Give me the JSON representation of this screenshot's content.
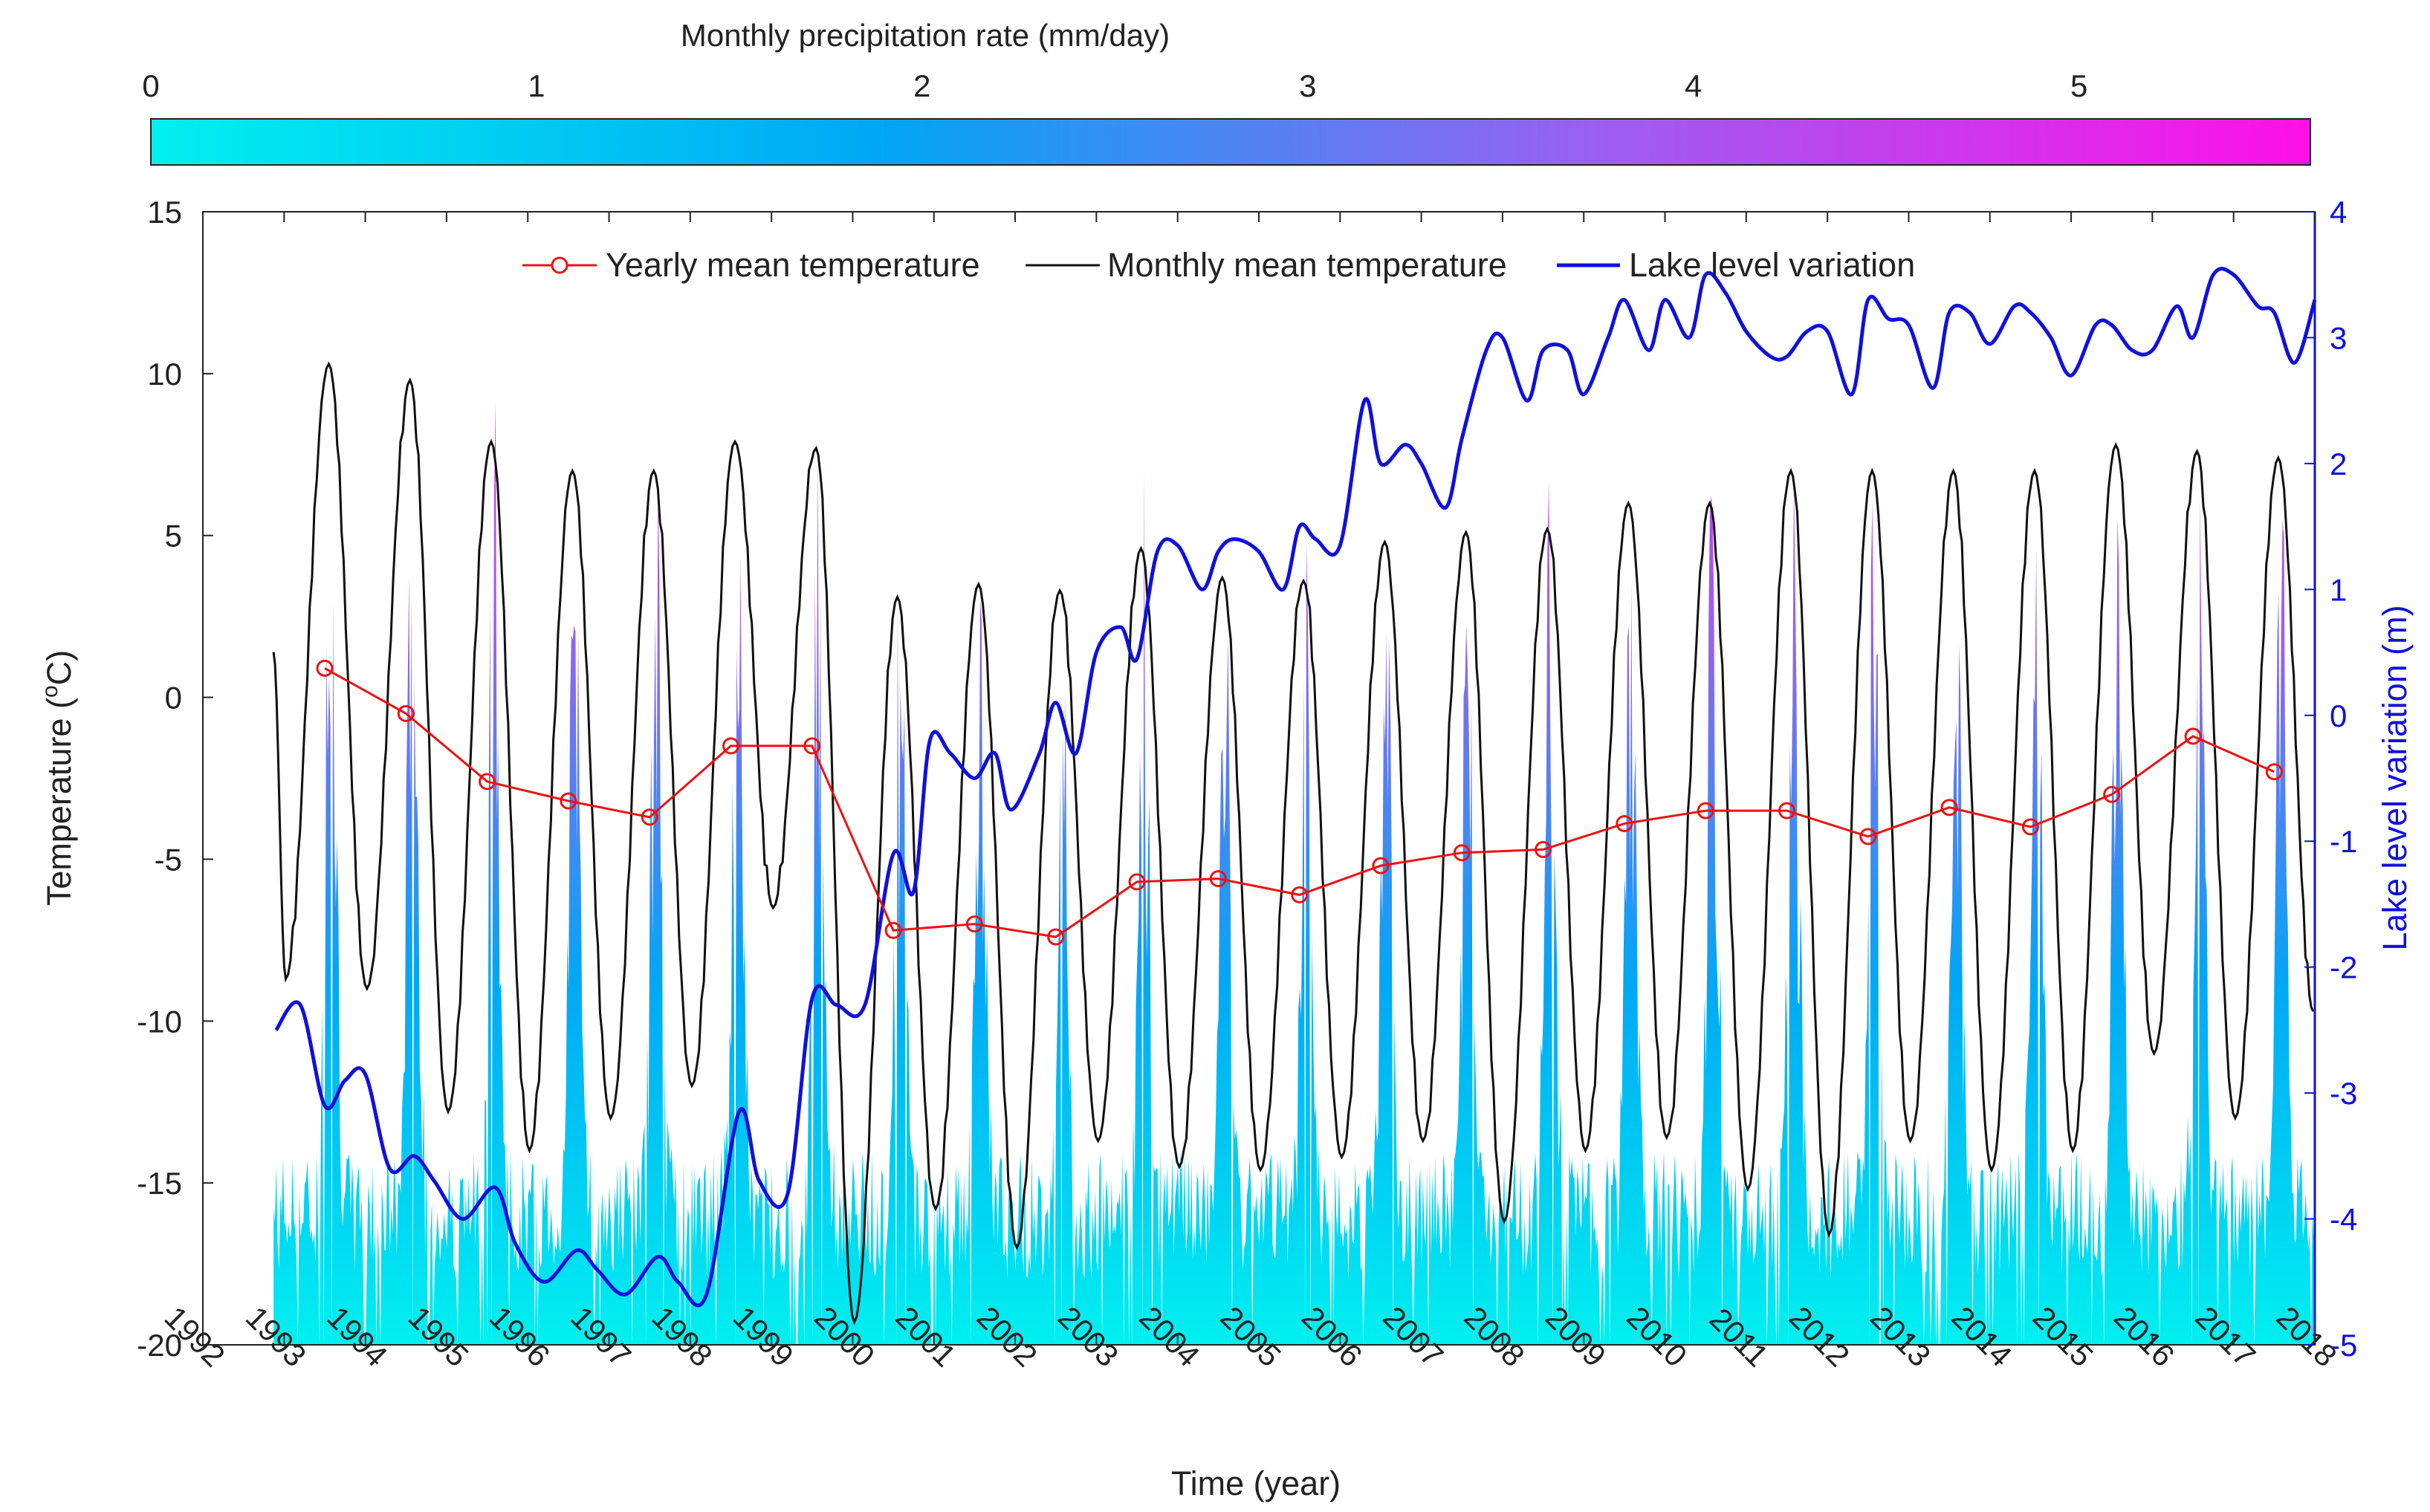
{
  "chart_data": {
    "type": "line",
    "title": "",
    "xlabel": "Time (year)",
    "ylabel": "Temperature (°C)",
    "ylabel_parts": [
      "Temperature (",
      "o",
      "C)"
    ],
    "y2label": "Lake level variation (m)",
    "xlim": [
      1992,
      2018
    ],
    "ylim": [
      -20,
      15
    ],
    "y2lim": [
      -5,
      4
    ],
    "x_ticks": [
      1992,
      1993,
      1994,
      1995,
      1996,
      1997,
      1998,
      1999,
      2000,
      2001,
      2002,
      2003,
      2004,
      2005,
      2006,
      2007,
      2008,
      2009,
      2010,
      2011,
      2012,
      2013,
      2014,
      2015,
      2016,
      2017,
      2018
    ],
    "y_ticks": [
      -20,
      -15,
      -10,
      -5,
      0,
      5,
      10,
      15
    ],
    "y2_ticks": [
      -5,
      -4,
      -3,
      -2,
      -1,
      0,
      1,
      2,
      3,
      4
    ],
    "colorbar": {
      "label": "Monthly precipitation rate (mm/day)",
      "range": [
        0,
        5.6
      ],
      "ticks": [
        0,
        1,
        2,
        3,
        4,
        5
      ],
      "colors": [
        "#00f0f0",
        "#00a8f5",
        "#9a60f0",
        "#ff10e8"
      ]
    },
    "legend": {
      "position": "top-center",
      "entries": [
        "Yearly mean temperature",
        "Monthly mean temperature",
        "Lake level variation"
      ]
    },
    "series": [
      {
        "name": "Yearly mean temperature",
        "axis": "left",
        "color": "#ee1111",
        "x": [
          1993.5,
          1994.5,
          1995.5,
          1996.5,
          1997.5,
          1998.5,
          1999.5,
          2000.5,
          2001.5,
          2002.5,
          2003.5,
          2004.5,
          2005.5,
          2006.5,
          2007.5,
          2008.5,
          2009.5,
          2010.5,
          2011.5,
          2012.5,
          2013.5,
          2014.5,
          2015.5,
          2016.5,
          2017.5
        ],
        "values": [
          0.9,
          -0.5,
          -2.6,
          -3.2,
          -3.7,
          -1.5,
          -1.5,
          -7.2,
          -7.0,
          -7.4,
          -5.7,
          -5.6,
          -6.1,
          -5.2,
          -4.8,
          -4.7,
          -3.9,
          -3.5,
          -3.5,
          -4.3,
          -3.4,
          -4.0,
          -3.0,
          -1.2,
          -2.3
        ]
      },
      {
        "name": "Monthly mean temperature",
        "axis": "left",
        "color": "#111111",
        "peaks": [
          10.3,
          9.8,
          7.9,
          7.0,
          7.0,
          7.9,
          7.7,
          3.1,
          3.5,
          3.3,
          4.6,
          3.7,
          3.6,
          4.8,
          5.1,
          5.2,
          6.0,
          6.0,
          7.0,
          7.0,
          7.0,
          7.0,
          7.8,
          7.6,
          7.4
        ],
        "troughs": [
          -8.7,
          -9.0,
          -12.8,
          -14.0,
          -13.0,
          -12.0,
          -6.5,
          -19.3,
          -15.8,
          -17.0,
          -13.7,
          -14.5,
          -14.6,
          -14.2,
          -13.7,
          -16.2,
          -14.0,
          -13.6,
          -15.2,
          -16.6,
          -13.7,
          -14.6,
          -14.0,
          -11.0,
          -13.0
        ],
        "last_trough": -9.7
      },
      {
        "name": "Lake level variation",
        "axis": "right",
        "color": "#1010dd",
        "x": [
          1992.9,
          1993.2,
          1993.5,
          1993.75,
          1994.0,
          1994.3,
          1994.6,
          1994.85,
          1995.2,
          1995.6,
          1995.85,
          1996.2,
          1996.6,
          1996.85,
          1997.2,
          1997.6,
          1997.85,
          1998.2,
          1998.6,
          1998.85,
          1999.2,
          1999.5,
          1999.8,
          2000.15,
          2000.5,
          2000.75,
          2000.95,
          2001.2,
          2001.5,
          2001.75,
          2001.95,
          2002.3,
          2002.5,
          2002.75,
          2003.0,
          2003.3,
          2003.5,
          2003.75,
          2004.0,
          2004.3,
          2004.5,
          2004.7,
          2005.0,
          2005.3,
          2005.5,
          2005.7,
          2006.0,
          2006.3,
          2006.5,
          2006.8,
          2007.0,
          2007.3,
          2007.5,
          2007.8,
          2008.0,
          2008.3,
          2008.5,
          2008.8,
          2009.0,
          2009.3,
          2009.5,
          2009.8,
          2010.0,
          2010.3,
          2010.5,
          2010.75,
          2011.0,
          2011.3,
          2011.5,
          2011.75,
          2012.0,
          2012.3,
          2012.5,
          2012.75,
          2013.0,
          2013.3,
          2013.5,
          2013.75,
          2014.0,
          2014.3,
          2014.5,
          2014.75,
          2015.0,
          2015.3,
          2015.5,
          2015.75,
          2016.0,
          2016.3,
          2016.5,
          2016.75,
          2017.0,
          2017.3,
          2017.5,
          2017.75,
          2018.0
        ],
        "values": [
          -2.5,
          -2.3,
          -3.1,
          -2.9,
          -2.85,
          -3.6,
          -3.5,
          -3.7,
          -4.0,
          -3.75,
          -4.2,
          -4.5,
          -4.25,
          -4.4,
          -4.6,
          -4.3,
          -4.5,
          -4.6,
          -3.15,
          -3.7,
          -3.8,
          -2.25,
          -2.3,
          -2.3,
          -1.1,
          -1.4,
          -0.2,
          -0.3,
          -0.5,
          -0.3,
          -0.75,
          -0.3,
          0.1,
          -0.3,
          0.5,
          0.7,
          0.45,
          1.3,
          1.35,
          1.0,
          1.3,
          1.4,
          1.3,
          1.0,
          1.5,
          1.4,
          1.35,
          2.5,
          2.0,
          2.15,
          2.0,
          1.65,
          2.2,
          2.9,
          3.0,
          2.5,
          2.9,
          2.9,
          2.55,
          3.0,
          3.3,
          2.9,
          3.3,
          3.0,
          3.5,
          3.35,
          3.05,
          2.85,
          2.85,
          3.05,
          3.05,
          2.55,
          3.3,
          3.15,
          3.1,
          2.6,
          3.2,
          3.2,
          2.95,
          3.25,
          3.2,
          3.0,
          2.7,
          3.1,
          3.1,
          2.9,
          2.9,
          3.25,
          3.0,
          3.5,
          3.5,
          3.25,
          3.2,
          2.8,
          3.3
        ]
      }
    ]
  }
}
